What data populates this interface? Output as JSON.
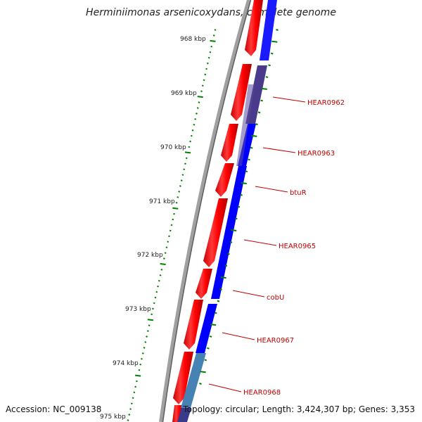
{
  "title": "Herminiimonas arsenicoxydans, complete genome",
  "footer": {
    "accession": "Accession: NC_009138",
    "topology": "Topology: circular; Length: 3,424,307 bp; Genes: 3,353"
  },
  "scale_labels": [
    "968 kbp",
    "969 kbp",
    "970 kbp",
    "971 kbp",
    "972 kbp",
    "973 kbp",
    "974 kbp",
    "975 kbp"
  ],
  "gene_labels": [
    "HEAR0962",
    "HEAR0963",
    "btuR",
    "HEAR0965",
    "cobU",
    "HEAR0967",
    "HEAR0968"
  ],
  "colors": {
    "forward_strand": "#ff0000",
    "reverse_strand": "#0000ff",
    "backbone": "#808080",
    "scale": "#008000",
    "label": "#c00000",
    "tint_purple": "#4a3a8c",
    "tint_steel": "#4682b4"
  }
}
